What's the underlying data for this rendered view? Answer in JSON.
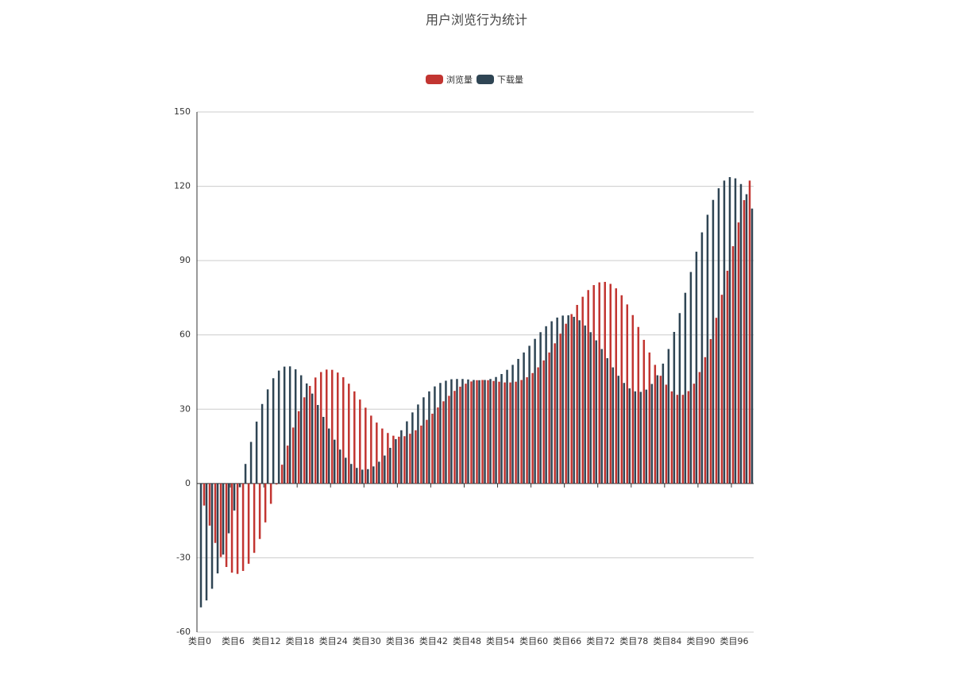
{
  "chart_data": {
    "type": "bar",
    "title": "用户浏览行为统计",
    "categories": [
      "类目0",
      null,
      null,
      null,
      null,
      null,
      "类目6",
      null,
      null,
      null,
      null,
      null,
      "类目12",
      null,
      null,
      null,
      null,
      null,
      "类目18",
      null,
      null,
      null,
      null,
      null,
      "类目24",
      null,
      null,
      null,
      null,
      null,
      "类目30",
      null,
      null,
      null,
      null,
      null,
      "类目36",
      null,
      null,
      null,
      null,
      null,
      "类目42",
      null,
      null,
      null,
      null,
      null,
      "类目48",
      null,
      null,
      null,
      null,
      null,
      "类目54",
      null,
      null,
      null,
      null,
      null,
      "类目60",
      null,
      null,
      null,
      null,
      null,
      "类目66",
      null,
      null,
      null,
      null,
      null,
      "类目72",
      null,
      null,
      null,
      null,
      null,
      "类目78",
      null,
      null,
      null,
      null,
      null,
      "类目84",
      null,
      null,
      null,
      null,
      null,
      "类目90",
      null,
      null,
      null,
      null,
      null,
      "类目96",
      null,
      null,
      null
    ],
    "series": [
      {
        "name": "浏览量",
        "color": "#c23531",
        "values": [
          0,
          -8.9,
          -17.0,
          -24.0,
          -29.7,
          -33.7,
          -36.0,
          -36.5,
          -35.3,
          -32.4,
          -28.0,
          -22.4,
          -15.7,
          -8.2,
          -0.4,
          7.6,
          15.3,
          22.6,
          29.2,
          34.8,
          39.4,
          42.8,
          45.0,
          46.0,
          45.9,
          44.8,
          42.9,
          40.3,
          37.2,
          33.9,
          30.6,
          27.4,
          24.6,
          22.2,
          20.4,
          19.3,
          18.9,
          19.1,
          20.1,
          21.5,
          23.4,
          25.7,
          28.2,
          30.7,
          33.2,
          35.4,
          37.4,
          39.1,
          40.3,
          41.2,
          41.7,
          41.8,
          41.7,
          41.4,
          41.1,
          40.8,
          40.8,
          41.1,
          41.8,
          42.9,
          44.6,
          46.9,
          49.7,
          52.9,
          56.6,
          60.5,
          64.5,
          68.4,
          72.1,
          75.4,
          78.1,
          80.1,
          81.2,
          81.4,
          80.6,
          78.8,
          76.0,
          72.3,
          68.0,
          63.2,
          58.0,
          52.9,
          47.9,
          43.5,
          39.9,
          37.2,
          35.8,
          35.8,
          37.3,
          40.3,
          45.0,
          51.0,
          58.3,
          66.9,
          76.2,
          85.9,
          95.8,
          105.4,
          114.4,
          122.3
        ]
      },
      {
        "name": "下载量",
        "color": "#2f4554",
        "values": [
          -50,
          -47.2,
          -42.5,
          -36.3,
          -28.7,
          -20.1,
          -10.9,
          -1.5,
          7.9,
          16.8,
          25.0,
          32.1,
          38.0,
          42.5,
          45.6,
          47.2,
          47.3,
          46.1,
          43.7,
          40.4,
          36.3,
          31.7,
          26.9,
          22.2,
          17.7,
          13.7,
          10.4,
          7.9,
          6.3,
          5.6,
          5.8,
          6.9,
          8.8,
          11.3,
          14.4,
          17.9,
          21.5,
          25.1,
          28.7,
          31.9,
          34.8,
          37.2,
          39.2,
          40.6,
          41.5,
          42.1,
          42.2,
          42.2,
          42.0,
          41.8,
          41.7,
          41.8,
          42.2,
          43.0,
          44.2,
          45.9,
          47.9,
          50.3,
          52.9,
          55.6,
          58.4,
          61.1,
          63.5,
          65.5,
          67.0,
          67.8,
          67.9,
          67.3,
          65.9,
          63.8,
          61.1,
          57.8,
          54.3,
          50.6,
          46.9,
          43.5,
          40.6,
          38.4,
          37.2,
          37.0,
          37.9,
          40.2,
          43.7,
          48.4,
          54.3,
          61.2,
          68.8,
          77.0,
          85.4,
          93.6,
          101.4,
          108.5,
          114.5,
          119.2,
          122.3,
          123.7,
          123.2,
          120.9,
          116.8,
          111.0
        ]
      }
    ],
    "ylim": [
      -60,
      150
    ],
    "yticks": [
      -60,
      -30,
      0,
      30,
      60,
      90,
      120,
      150
    ],
    "grid": true,
    "legend": "top"
  }
}
